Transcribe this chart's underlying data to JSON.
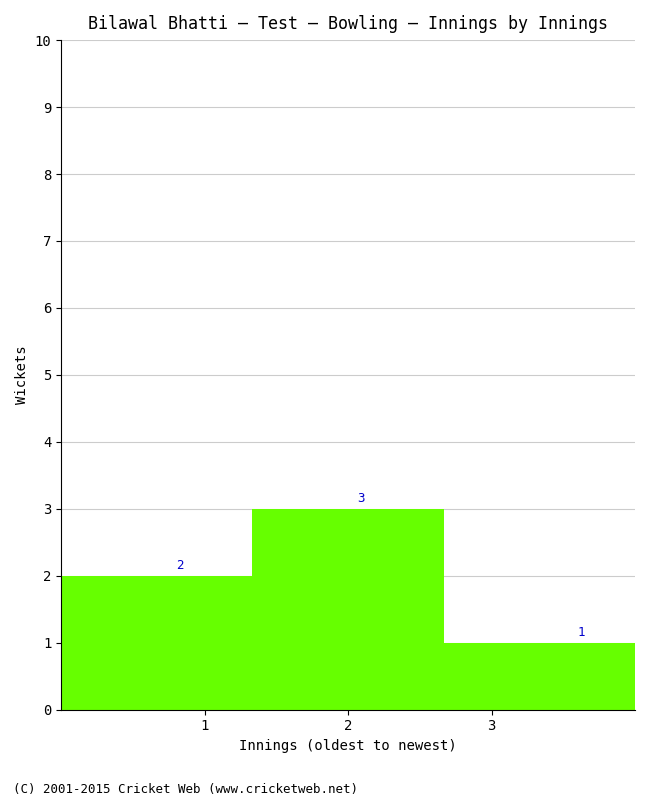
{
  "title": "Bilawal Bhatti – Test – Bowling – Innings by Innings",
  "xlabel": "Innings (oldest to newest)",
  "ylabel": "Wickets",
  "categories": [
    "1",
    "2",
    "3"
  ],
  "values": [
    2,
    3,
    1
  ],
  "bar_color": "#66ff00",
  "ylim": [
    0,
    10
  ],
  "yticks": [
    0,
    1,
    2,
    3,
    4,
    5,
    6,
    7,
    8,
    9,
    10
  ],
  "background_color": "#ffffff",
  "grid_color": "#cccccc",
  "label_color": "#0000cc",
  "footer": "(C) 2001-2015 Cricket Web (www.cricketweb.net)",
  "title_fontsize": 12,
  "axis_fontsize": 10,
  "tick_fontsize": 10,
  "label_fontsize": 9,
  "footer_fontsize": 9
}
